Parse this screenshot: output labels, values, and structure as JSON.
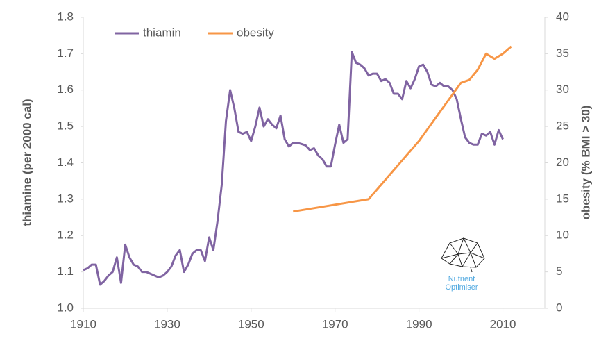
{
  "chart_data": {
    "type": "line",
    "ylabel": "thiamine (per 2000 cal)",
    "y2label": "obesity (% BMI > 30)",
    "xlim": [
      1910,
      2020
    ],
    "xticks": [
      1910,
      1930,
      1950,
      1970,
      1990,
      2010
    ],
    "ylim": [
      1.0,
      1.8
    ],
    "yticks": [
      {
        "value": 1.0,
        "label": "1.0"
      },
      1.1,
      1.2,
      1.3,
      1.4,
      1.5,
      1.6,
      1.7,
      1.8
    ],
    "y2lim": [
      0,
      40
    ],
    "y2ticks": [
      0,
      5,
      10,
      15,
      20,
      25,
      30,
      35,
      40
    ],
    "grid": false,
    "legend": "top-left",
    "series": [
      {
        "name": "thiamin",
        "color": "#8064a2",
        "x": [
          1910,
          1911,
          1912,
          1913,
          1914,
          1915,
          1916,
          1917,
          1918,
          1919,
          1920,
          1921,
          1922,
          1923,
          1924,
          1925,
          1926,
          1927,
          1928,
          1929,
          1930,
          1931,
          1932,
          1933,
          1934,
          1935,
          1936,
          1937,
          1938,
          1939,
          1940,
          1941,
          1942,
          1943,
          1944,
          1945,
          1946,
          1947,
          1948,
          1949,
          1950,
          1951,
          1952,
          1953,
          1954,
          1955,
          1956,
          1957,
          1958,
          1959,
          1960,
          1961,
          1962,
          1963,
          1964,
          1965,
          1966,
          1967,
          1968,
          1969,
          1970,
          1971,
          1972,
          1973,
          1974,
          1975,
          1976,
          1977,
          1978,
          1979,
          1980,
          1981,
          1982,
          1983,
          1984,
          1985,
          1986,
          1987,
          1988,
          1989,
          1990,
          1991,
          1992,
          1993,
          1994,
          1995,
          1996,
          1997,
          1998,
          1999,
          2000,
          2001,
          2002,
          2003,
          2004,
          2005,
          2006,
          2007,
          2008,
          2009,
          2010
        ],
        "values": [
          1.105,
          1.11,
          1.12,
          1.12,
          1.065,
          1.075,
          1.09,
          1.1,
          1.14,
          1.07,
          1.175,
          1.14,
          1.12,
          1.115,
          1.1,
          1.1,
          1.095,
          1.09,
          1.085,
          1.09,
          1.1,
          1.115,
          1.145,
          1.16,
          1.1,
          1.12,
          1.15,
          1.16,
          1.16,
          1.13,
          1.195,
          1.16,
          1.24,
          1.34,
          1.515,
          1.6,
          1.55,
          1.485,
          1.48,
          1.485,
          1.46,
          1.5,
          1.552,
          1.5,
          1.52,
          1.505,
          1.495,
          1.53,
          1.465,
          1.445,
          1.455,
          1.455,
          1.452,
          1.448,
          1.435,
          1.44,
          1.42,
          1.41,
          1.39,
          1.39,
          1.45,
          1.505,
          1.455,
          1.465,
          1.705,
          1.675,
          1.67,
          1.66,
          1.64,
          1.645,
          1.645,
          1.625,
          1.63,
          1.62,
          1.59,
          1.59,
          1.575,
          1.625,
          1.605,
          1.63,
          1.665,
          1.67,
          1.65,
          1.615,
          1.61,
          1.62,
          1.61,
          1.61,
          1.6,
          1.575,
          1.52,
          1.47,
          1.455,
          1.45,
          1.45,
          1.48,
          1.475,
          1.485,
          1.45,
          1.49,
          1.465
        ]
      },
      {
        "name": "obesity",
        "color": "#f79646",
        "axis": "y2",
        "x": [
          1960,
          1978,
          1990,
          2000,
          2002,
          2004,
          2006,
          2008,
          2010,
          2012
        ],
        "values": [
          13.3,
          15,
          23,
          31,
          31.4,
          32.8,
          35,
          34.3,
          35,
          36
        ]
      }
    ]
  },
  "logo": {
    "line1": "Nutrient",
    "line2": "Optimiser"
  }
}
